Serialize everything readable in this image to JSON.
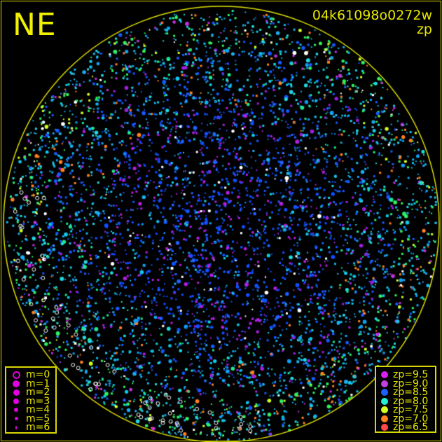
{
  "direction_label": "NE",
  "image_id": "04k61098o0272w",
  "color_mode": "zp",
  "horizon_color": "#e0e000",
  "magnitude_legend": [
    {
      "label": "m=0",
      "style": "ring",
      "color": "#e000e0"
    },
    {
      "label": "m=1",
      "style": "dot",
      "color": "#e000e0"
    },
    {
      "label": "m=2",
      "style": "dot",
      "color": "#e000e0"
    },
    {
      "label": "m=3",
      "style": "dot",
      "color": "#e000e0"
    },
    {
      "label": "m=4",
      "style": "dot",
      "color": "#e000e0"
    },
    {
      "label": "m=5",
      "style": "dot",
      "color": "#e000e0"
    },
    {
      "label": "m=6",
      "style": "dot",
      "color": "#e000e0"
    }
  ],
  "zp_legend": [
    {
      "label": "zp=9.5",
      "color": "#d820f0"
    },
    {
      "label": "zp=9.0",
      "color": "#c040e0"
    },
    {
      "label": "zp=8.5",
      "color": "#2060ff"
    },
    {
      "label": "zp=8.0",
      "color": "#20f0d0"
    },
    {
      "label": "zp=7.5",
      "color": "#d0ff20"
    },
    {
      "label": "zp=7.0",
      "color": "#ff8020"
    },
    {
      "label": "zp=6.5",
      "color": "#ff4848"
    }
  ]
}
